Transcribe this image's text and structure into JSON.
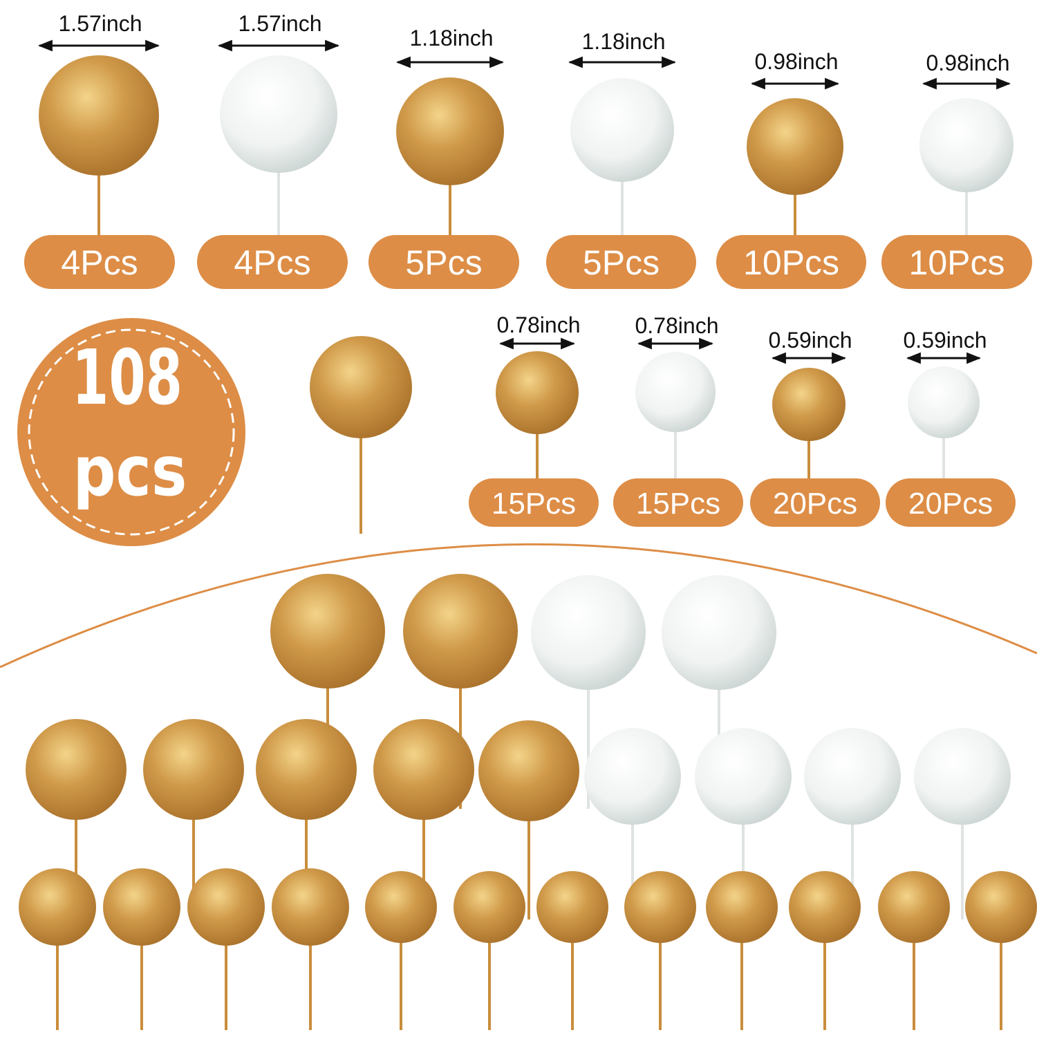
{
  "colors": {
    "accent": "#dd8d46",
    "gold": "#c98d3c",
    "white": "#eef2f1"
  },
  "badge": {
    "number": "108",
    "unit": "pcs"
  },
  "products": [
    {
      "size": "1.57inch",
      "count": "4Pcs",
      "color": "gold"
    },
    {
      "size": "1.57inch",
      "count": "4Pcs",
      "color": "white"
    },
    {
      "size": "1.18inch",
      "count": "5Pcs",
      "color": "gold"
    },
    {
      "size": "1.18inch",
      "count": "5Pcs",
      "color": "white"
    },
    {
      "size": "0.98inch",
      "count": "10Pcs",
      "color": "gold"
    },
    {
      "size": "0.98inch",
      "count": "10Pcs",
      "color": "white"
    },
    {
      "size": "0.78inch",
      "count": "15Pcs",
      "color": "gold"
    },
    {
      "size": "0.78inch",
      "count": "15Pcs",
      "color": "white"
    },
    {
      "size": "0.59inch",
      "count": "20Pcs",
      "color": "gold"
    },
    {
      "size": "0.59inch",
      "count": "20Pcs",
      "color": "white"
    }
  ]
}
